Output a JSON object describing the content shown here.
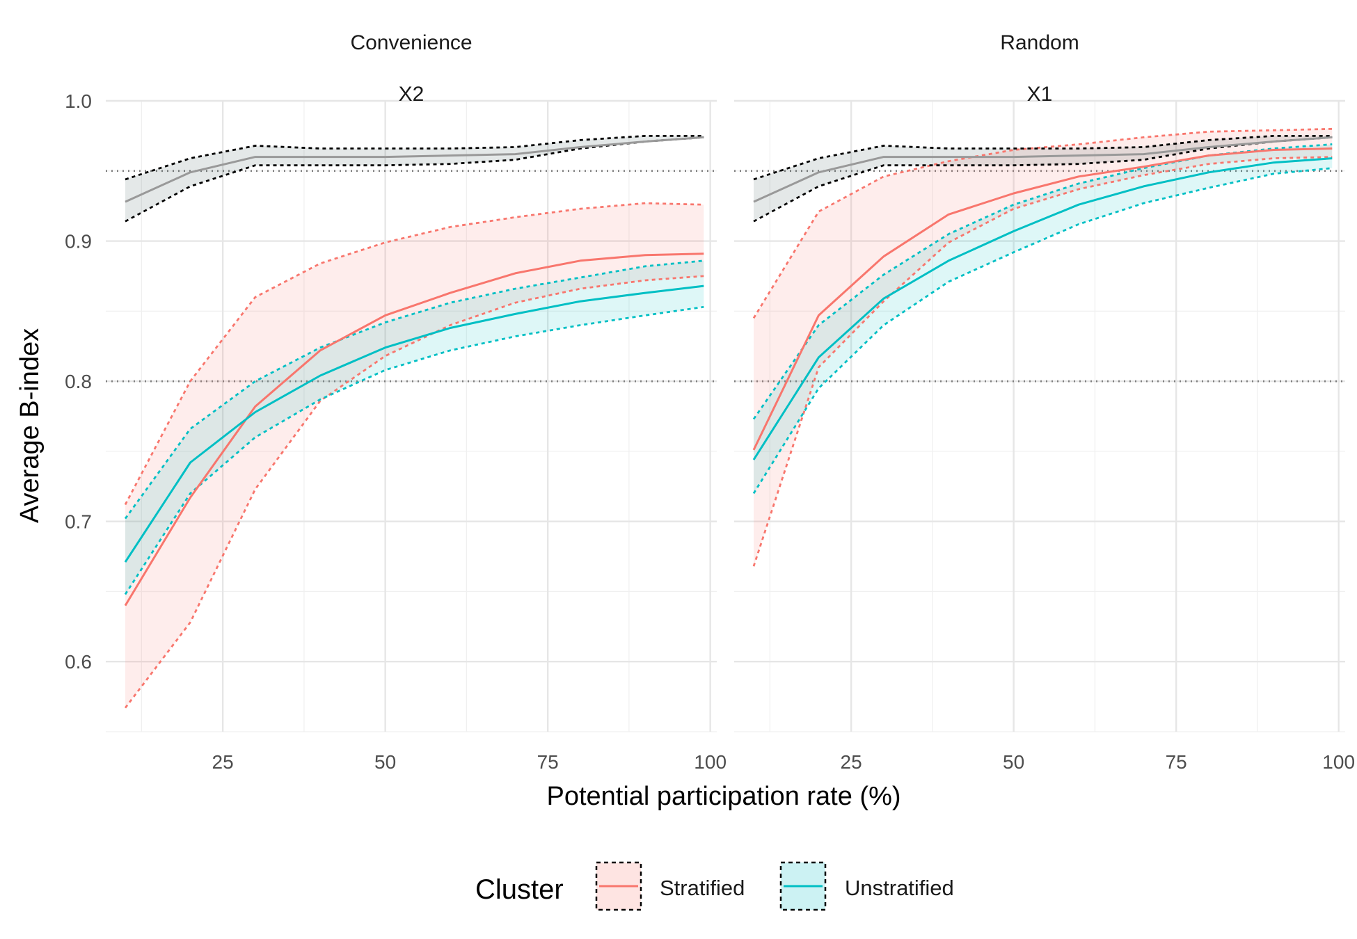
{
  "chart_data": {
    "type": "line",
    "xlabel": "Potential participation rate (%)",
    "ylabel": "Average B-index",
    "xlim": [
      7,
      101
    ],
    "ylim": [
      0.55,
      1.0
    ],
    "x_ticks": [
      25,
      50,
      75,
      100
    ],
    "y_ticks": [
      0.6,
      0.7,
      0.8,
      0.9,
      1.0
    ],
    "reference_lines": [
      0.8,
      0.95
    ],
    "grid": true,
    "legend": {
      "title": "Cluster",
      "placement": "bottom",
      "entries": [
        "Stratified",
        "Unstratified"
      ]
    },
    "colors": {
      "stratified": "#F8766D",
      "unstratified": "#00BFC4",
      "gray_line": "#999999",
      "gray_band": "#2f4f4f",
      "reference": "#7f7f7f"
    },
    "panels": [
      {
        "strip_top": "Convenience",
        "strip_bottom": "X2",
        "x": [
          10,
          20,
          30,
          40,
          50,
          60,
          70,
          80,
          90,
          99
        ],
        "series": [
          {
            "name": "Stratified",
            "mean": [
              0.64,
              0.717,
              0.782,
              0.822,
              0.847,
              0.863,
              0.877,
              0.886,
              0.89,
              0.891
            ],
            "upper": [
              0.712,
              0.8,
              0.86,
              0.884,
              0.899,
              0.91,
              0.917,
              0.923,
              0.927,
              0.926
            ],
            "lower": [
              0.567,
              0.628,
              0.723,
              0.786,
              0.818,
              0.84,
              0.856,
              0.866,
              0.872,
              0.875
            ]
          },
          {
            "name": "Unstratified",
            "mean": [
              0.671,
              0.742,
              0.778,
              0.804,
              0.824,
              0.838,
              0.848,
              0.857,
              0.863,
              0.868
            ],
            "upper": [
              0.702,
              0.766,
              0.8,
              0.824,
              0.842,
              0.856,
              0.866,
              0.874,
              0.882,
              0.886
            ],
            "lower": [
              0.648,
              0.72,
              0.76,
              0.787,
              0.808,
              0.822,
              0.832,
              0.84,
              0.847,
              0.853
            ]
          },
          {
            "name": "",
            "mean": [
              0.928,
              0.949,
              0.96,
              0.96,
              0.96,
              0.961,
              0.962,
              0.967,
              0.971,
              0.974
            ],
            "upper": [
              0.944,
              0.959,
              0.968,
              0.966,
              0.966,
              0.966,
              0.967,
              0.972,
              0.975,
              0.975
            ],
            "lower": [
              0.914,
              0.939,
              0.954,
              0.954,
              0.954,
              0.955,
              0.958,
              0.966,
              0.971,
              0.974
            ]
          }
        ]
      },
      {
        "strip_top": "Random",
        "strip_bottom": "X1",
        "x": [
          10,
          20,
          30,
          40,
          50,
          60,
          70,
          80,
          90,
          99
        ],
        "series": [
          {
            "name": "Stratified",
            "mean": [
              0.751,
              0.847,
              0.889,
              0.919,
              0.934,
              0.946,
              0.953,
              0.961,
              0.965,
              0.966
            ],
            "upper": [
              0.845,
              0.921,
              0.946,
              0.957,
              0.965,
              0.969,
              0.974,
              0.978,
              0.979,
              0.98
            ],
            "lower": [
              0.668,
              0.81,
              0.857,
              0.899,
              0.923,
              0.937,
              0.947,
              0.955,
              0.959,
              0.96
            ]
          },
          {
            "name": "Unstratified",
            "mean": [
              0.744,
              0.817,
              0.859,
              0.886,
              0.907,
              0.926,
              0.939,
              0.949,
              0.956,
              0.959
            ],
            "upper": [
              0.773,
              0.84,
              0.876,
              0.905,
              0.926,
              0.941,
              0.952,
              0.961,
              0.966,
              0.969
            ],
            "lower": [
              0.72,
              0.795,
              0.84,
              0.871,
              0.892,
              0.912,
              0.927,
              0.938,
              0.948,
              0.952
            ]
          },
          {
            "name": "",
            "mean": [
              0.928,
              0.949,
              0.96,
              0.96,
              0.96,
              0.961,
              0.962,
              0.967,
              0.971,
              0.974
            ],
            "upper": [
              0.944,
              0.959,
              0.968,
              0.966,
              0.966,
              0.966,
              0.967,
              0.972,
              0.975,
              0.975
            ],
            "lower": [
              0.914,
              0.939,
              0.954,
              0.954,
              0.954,
              0.955,
              0.958,
              0.966,
              0.971,
              0.974
            ]
          }
        ]
      }
    ]
  }
}
